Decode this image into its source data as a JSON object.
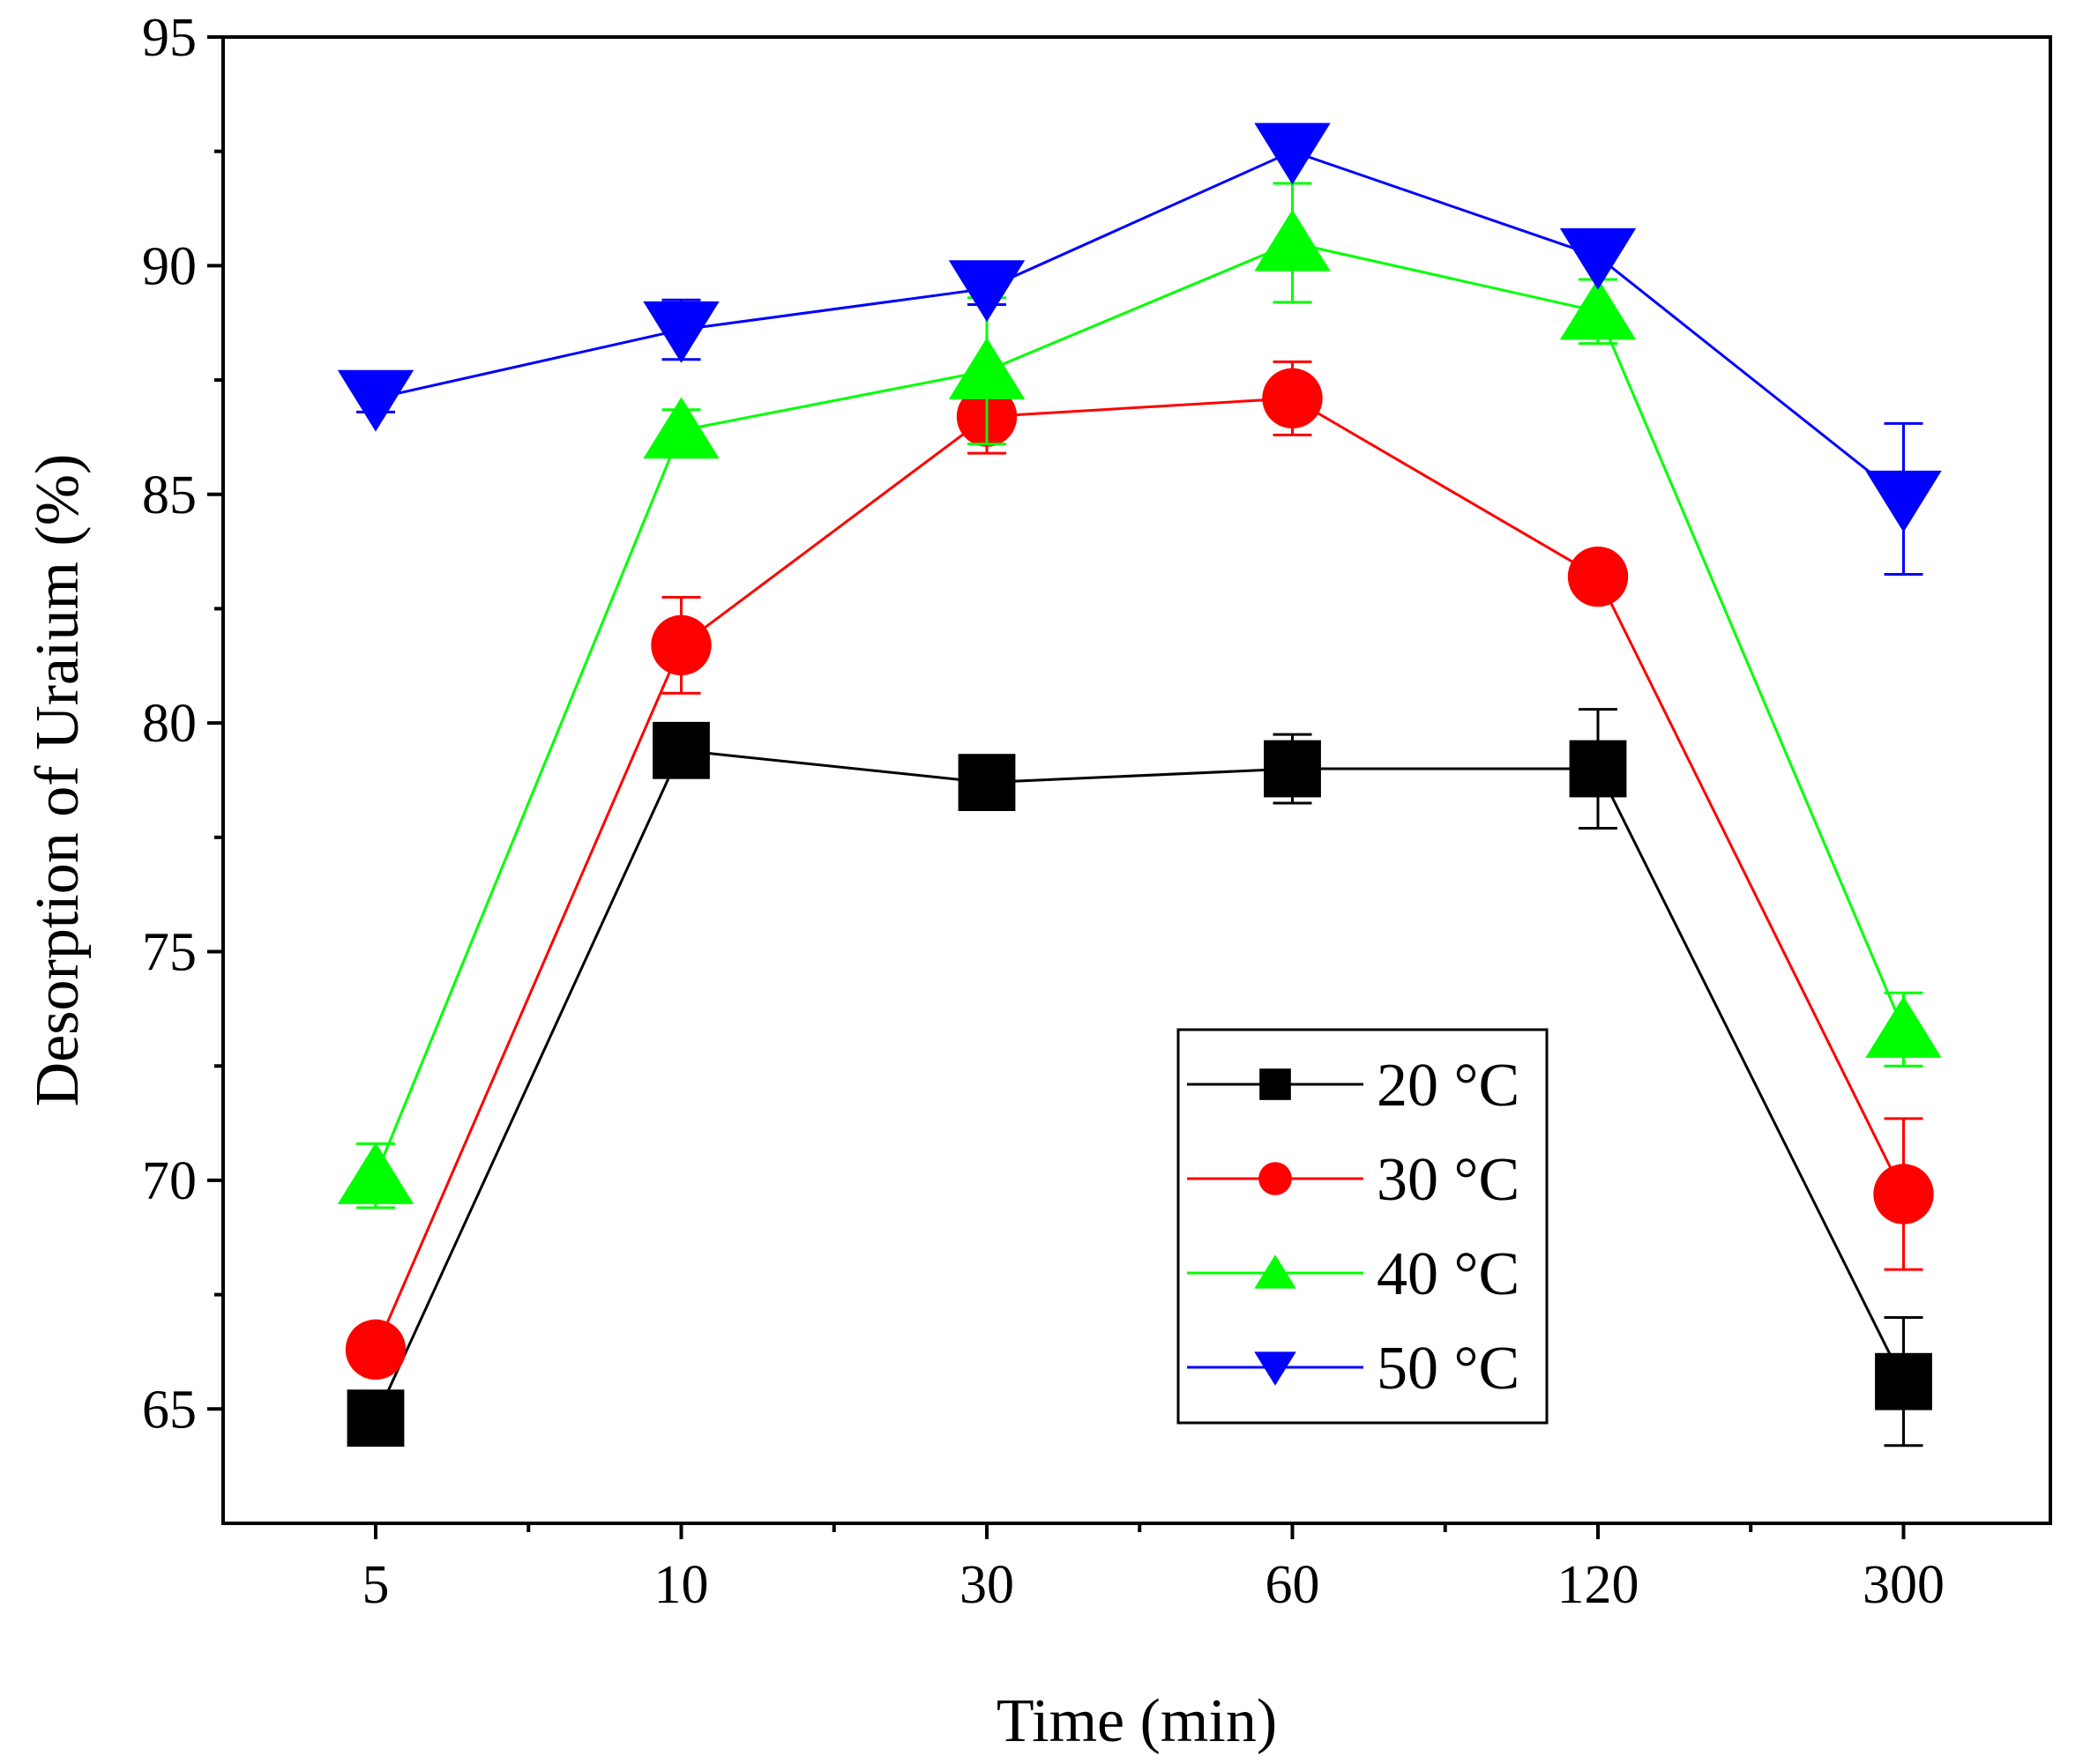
{
  "chart_data": {
    "type": "line",
    "title": "",
    "xlabel": "Time (min)",
    "ylabel": "Desorption of  Uraium (%)",
    "categories": [
      "5",
      "10",
      "30",
      "60",
      "120",
      "300"
    ],
    "ylim": [
      62.5,
      95
    ],
    "yticks": [
      65,
      70,
      75,
      80,
      85,
      90,
      95
    ],
    "grid": false,
    "legend_position": "bottom-right",
    "series": [
      {
        "name": "20 °C",
        "color": "#000000",
        "marker": "square",
        "values": [
          64.8,
          79.4,
          78.7,
          79.0,
          79.0,
          65.6
        ],
        "errors": [
          0.55,
          0.55,
          0.45,
          0.75,
          1.3,
          1.4
        ]
      },
      {
        "name": "30 °C",
        "color": "#ff0000",
        "marker": "circle",
        "values": [
          66.3,
          81.7,
          86.7,
          87.1,
          83.2,
          69.7
        ],
        "errors": [
          0.0,
          1.05,
          0.8,
          0.8,
          0.0,
          1.65
        ]
      },
      {
        "name": "40 °C",
        "color": "#00ff00",
        "marker": "triangle-up",
        "values": [
          70.1,
          86.4,
          87.7,
          90.5,
          89.0,
          73.3
        ],
        "errors": [
          0.7,
          0.45,
          1.6,
          1.3,
          0.7,
          0.8
        ]
      },
      {
        "name": "50 °C",
        "color": "#0000ff",
        "marker": "triangle-down",
        "values": [
          87.1,
          88.6,
          89.5,
          92.5,
          90.2,
          84.9
        ],
        "errors": [
          0.3,
          0.65,
          0.35,
          0.0,
          0.0,
          1.65
        ]
      }
    ]
  }
}
